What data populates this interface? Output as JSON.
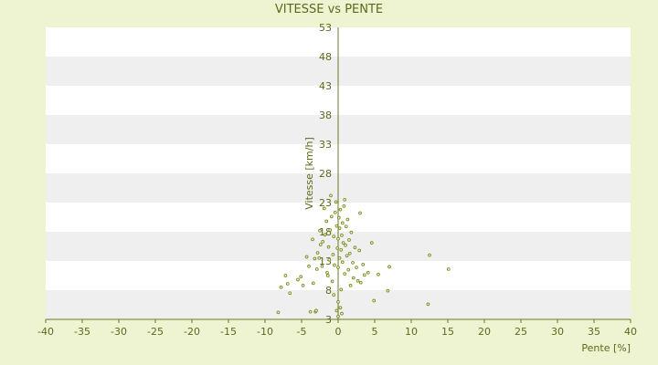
{
  "chart_data": {
    "type": "scatter",
    "title": "VITESSE vs PENTE",
    "xlabel": "Pente [%]",
    "ylabel": "Vitesse [km/h]",
    "xlim": [
      -40,
      40
    ],
    "ylim": [
      3,
      53
    ],
    "x_ticks": [
      -40,
      -35,
      -30,
      -25,
      -20,
      -15,
      -10,
      -5,
      0,
      5,
      10,
      15,
      20,
      25,
      30,
      35,
      40
    ],
    "y_ticks": [
      3,
      8,
      13,
      18,
      23,
      28,
      33,
      38,
      43,
      48,
      53
    ],
    "grid": "horizontal alternating bands",
    "colors": {
      "background": "#eef3d2",
      "band_light": "#ffffff",
      "band_dark": "#efefef",
      "axis": "#6a7a2a",
      "marker": "#7d8a1e",
      "text": "#5a6a1a"
    },
    "points": [
      [
        0.0,
        6
      ],
      [
        0.3,
        5
      ],
      [
        0.5,
        4
      ],
      [
        -0.2,
        4.5
      ],
      [
        0.0,
        3.5
      ],
      [
        -8.2,
        4.2
      ],
      [
        -7.8,
        8.5
      ],
      [
        -7.2,
        10.5
      ],
      [
        -6.9,
        9.1
      ],
      [
        -6.6,
        7.5
      ],
      [
        -5.5,
        9.8
      ],
      [
        -5.1,
        10.3
      ],
      [
        -4.8,
        8.8
      ],
      [
        -4.3,
        13.7
      ],
      [
        -4.0,
        12.1
      ],
      [
        -3.8,
        4.3
      ],
      [
        -3.4,
        9.2
      ],
      [
        -3.1,
        4.3
      ],
      [
        -3.0,
        4.5
      ],
      [
        -2.9,
        11.6
      ],
      [
        -3.2,
        13.4
      ],
      [
        -3.5,
        16.7
      ],
      [
        -2.8,
        14.4
      ],
      [
        -2.5,
        18.2
      ],
      [
        -2.6,
        13.5
      ],
      [
        -2.2,
        12.1
      ],
      [
        -2.1,
        16.3
      ],
      [
        -1.8,
        17.5
      ],
      [
        -1.6,
        19.8
      ],
      [
        -1.9,
        22.0
      ],
      [
        -1.5,
        11.0
      ],
      [
        -1.4,
        10.5
      ],
      [
        -1.2,
        13.2
      ],
      [
        -1.3,
        15.4
      ],
      [
        -1.0,
        24.2
      ],
      [
        -0.9,
        20.6
      ],
      [
        -0.8,
        9.5
      ],
      [
        -0.7,
        14.1
      ],
      [
        -0.6,
        17.2
      ],
      [
        -0.5,
        12.3
      ],
      [
        -0.4,
        21.3
      ],
      [
        -0.3,
        23.1
      ],
      [
        -0.2,
        19.0
      ],
      [
        -0.1,
        15.2
      ],
      [
        0.0,
        16.8
      ],
      [
        0.0,
        11.9
      ],
      [
        0.1,
        20.4
      ],
      [
        0.2,
        18.6
      ],
      [
        0.2,
        13.5
      ],
      [
        0.3,
        21.8
      ],
      [
        0.4,
        14.9
      ],
      [
        0.5,
        17.4
      ],
      [
        0.6,
        12.8
      ],
      [
        0.6,
        19.5
      ],
      [
        0.7,
        16.1
      ],
      [
        0.8,
        22.4
      ],
      [
        0.9,
        10.8
      ],
      [
        1.0,
        15.7
      ],
      [
        1.1,
        18.9
      ],
      [
        1.2,
        13.9
      ],
      [
        1.3,
        20.1
      ],
      [
        1.4,
        11.5
      ],
      [
        1.5,
        16.6
      ],
      [
        1.6,
        14.3
      ],
      [
        1.8,
        17.9
      ],
      [
        2.0,
        12.7
      ],
      [
        2.1,
        10.1
      ],
      [
        2.3,
        15.3
      ],
      [
        2.5,
        11.9
      ],
      [
        2.7,
        9.6
      ],
      [
        2.9,
        14.8
      ],
      [
        3.0,
        21.2
      ],
      [
        3.1,
        9.3
      ],
      [
        3.4,
        12.4
      ],
      [
        3.6,
        10.6
      ],
      [
        4.1,
        11.0
      ],
      [
        4.6,
        16.1
      ],
      [
        4.9,
        6.2
      ],
      [
        5.5,
        10.7
      ],
      [
        6.8,
        7.9
      ],
      [
        7.0,
        12.0
      ],
      [
        12.3,
        5.6
      ],
      [
        12.5,
        14.0
      ],
      [
        15.1,
        11.6
      ],
      [
        0.4,
        8.1
      ],
      [
        -0.6,
        7.2
      ],
      [
        1.7,
        8.8
      ],
      [
        -2.4,
        15.8
      ],
      [
        0.9,
        23.5
      ],
      [
        -1.1,
        18.3
      ]
    ]
  }
}
